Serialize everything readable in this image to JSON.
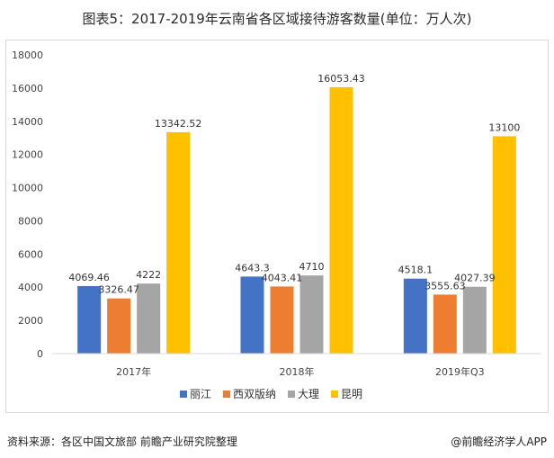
{
  "title": "图表5：2017-2019年云南省各区域接待游客数量(单位：万人次)",
  "footer": {
    "source": "资料来源：各区中国文旅部 前瞻产业研究院整理",
    "brand": "@前瞻经济学人APP"
  },
  "chart_data": {
    "type": "bar",
    "categories": [
      "2017年",
      "2018年",
      "2019年Q3"
    ],
    "series": [
      {
        "name": "丽江",
        "color": "#4472c4",
        "values": [
          4069.46,
          4643.3,
          4518.1
        ],
        "labels": [
          "4069.46",
          "4643.3",
          "4518.1"
        ]
      },
      {
        "name": "西双版纳",
        "color": "#ed7d31",
        "values": [
          3326.47,
          4043.41,
          3555.63
        ],
        "labels": [
          "3326.47",
          "4043.41",
          "3555.63"
        ]
      },
      {
        "name": "大理",
        "color": "#a5a5a5",
        "values": [
          4222,
          4710,
          4027.39
        ],
        "labels": [
          "4222",
          "4710",
          "4027.39"
        ]
      },
      {
        "name": "昆明",
        "color": "#ffc000",
        "values": [
          13342.52,
          16053.43,
          13100
        ],
        "labels": [
          "13342.52",
          "16053.43",
          "13100"
        ]
      }
    ],
    "ylim": [
      0,
      18000
    ],
    "yticks": [
      0,
      2000,
      4000,
      6000,
      8000,
      10000,
      12000,
      14000,
      16000,
      18000
    ],
    "grid": false,
    "legend_position": "bottom"
  }
}
